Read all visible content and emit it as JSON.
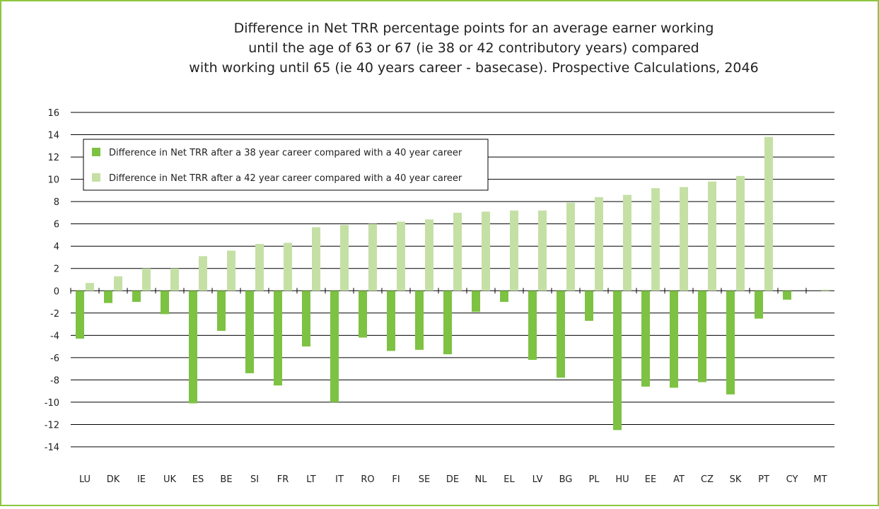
{
  "chart_data": {
    "type": "bar",
    "title": [
      "Difference in Net TRR percentage points for an average earner working",
      "until the age of 63 or 67 (ie 38 or 42 contributory years) compared",
      "with working until 65 (ie 40 years career - basecase). Prospective Calculations, 2046"
    ],
    "categories": [
      "LU",
      "DK",
      "IE",
      "UK",
      "ES",
      "BE",
      "SI",
      "FR",
      "LT",
      "IT",
      "RO",
      "FI",
      "SE",
      "DE",
      "NL",
      "EL",
      "LV",
      "BG",
      "PL",
      "HU",
      "EE",
      "AT",
      "CZ",
      "SK",
      "PT",
      "CY",
      "MT"
    ],
    "series": [
      {
        "name": "Difference in Net TRR after a 38 year career compared with a 40 year career",
        "color": "#7dc242",
        "values": [
          -4.3,
          -1.1,
          -1.0,
          -2.1,
          -10.1,
          -3.6,
          -7.4,
          -8.5,
          -5.0,
          -10.0,
          -4.2,
          -5.4,
          -5.3,
          -5.7,
          -1.9,
          -1.0,
          -6.2,
          -7.8,
          -2.7,
          -12.5,
          -8.6,
          -8.7,
          -8.2,
          -9.3,
          -2.5,
          -0.8,
          0
        ]
      },
      {
        "name": "Difference in Net TRR after a 42 year career compared with a 40 year career",
        "color": "#c5e0a5",
        "values": [
          0.7,
          1.3,
          2.0,
          2.0,
          3.1,
          3.6,
          4.2,
          4.3,
          5.7,
          5.9,
          6.0,
          6.2,
          6.4,
          7.0,
          7.1,
          7.2,
          7.2,
          7.9,
          8.4,
          8.6,
          9.2,
          9.3,
          9.8,
          10.3,
          13.8,
          0,
          0.1
        ]
      }
    ],
    "ylim": [
      -14,
      16
    ],
    "yticks": [
      -14,
      -12,
      -10,
      -8,
      -6,
      -4,
      -2,
      0,
      2,
      4,
      6,
      8,
      10,
      12,
      14,
      16
    ],
    "grid": true,
    "legend": "upper left"
  }
}
